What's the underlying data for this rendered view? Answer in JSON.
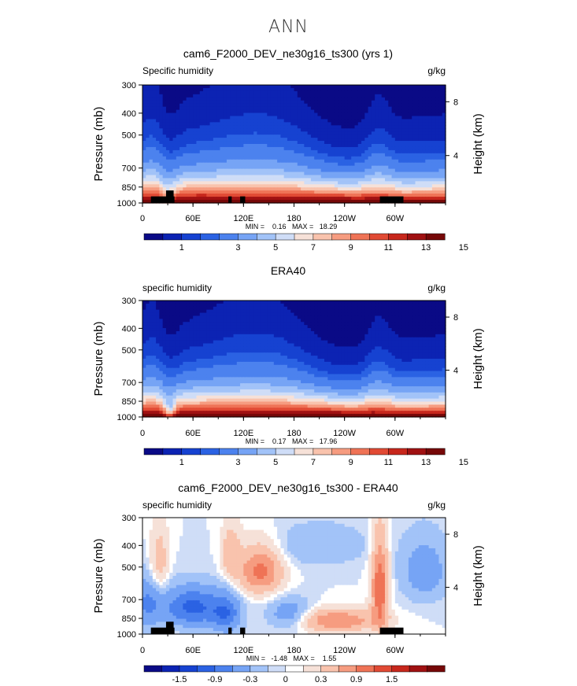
{
  "page": {
    "title": "ANN"
  },
  "colors": {
    "humidity_scale": [
      "#0a0a86",
      "#0c23b3",
      "#1642d1",
      "#2b62e3",
      "#4c82ee",
      "#76a4f5",
      "#a2c3f8",
      "#cfddf7",
      "#f6e1d8",
      "#f9c3ad",
      "#f69c80",
      "#ef7356",
      "#e14a34",
      "#c7271c",
      "#a01112",
      "#760808"
    ],
    "diff_scale": [
      "#0a0a86",
      "#0c23b3",
      "#1642d1",
      "#2b62e3",
      "#4c82ee",
      "#76a4f5",
      "#a2c3f8",
      "#cfddf7",
      "#ffffff",
      "#f6e1d8",
      "#f9c3ad",
      "#f69c80",
      "#ef7356",
      "#e14a34",
      "#c7271c",
      "#a01112",
      "#760808"
    ],
    "topography": "#000000"
  },
  "chart_data": [
    {
      "type": "heatmap",
      "title": "cam6_F2000_DEV_ne30g16_ts300 (yrs 1)",
      "left_label": "Specific humidity",
      "units": "g/kg",
      "ylabel": "Pressure (mb)",
      "ylabel_right": "Height (km)",
      "x_ticks": [
        "0",
        "60E",
        "120E",
        "180",
        "120W",
        "60W"
      ],
      "x_tick_values": [
        0,
        60,
        120,
        180,
        240,
        300
      ],
      "xlim": [
        0,
        360
      ],
      "y_ticks": [
        "300",
        "400",
        "500",
        "700",
        "850",
        "1000"
      ],
      "y_tick_values": [
        300,
        400,
        500,
        700,
        850,
        1000
      ],
      "ylim": [
        300,
        1000
      ],
      "y_scale": "log",
      "right_ticks": [
        "8",
        "4"
      ],
      "right_tick_values": [
        8,
        4
      ],
      "stats": "MIN =    0.16   MAX =   18.29",
      "colorbar_labels": [
        "1",
        "3",
        "5",
        "7",
        "9",
        "11",
        "13",
        "15"
      ],
      "colorbar_levels": [
        0.5,
        1,
        1.5,
        2,
        3,
        4,
        5,
        6,
        7,
        8,
        9,
        10,
        11,
        12,
        13,
        14,
        15,
        16
      ],
      "field": "humidity",
      "range": [
        0.16,
        18.29
      ],
      "topography": true
    },
    {
      "type": "heatmap",
      "title": "ERA40",
      "left_label": "specific humidity",
      "units": "g/kg",
      "ylabel": "Pressure (mb)",
      "ylabel_right": "Height (km)",
      "x_ticks": [
        "0",
        "60E",
        "120E",
        "180",
        "120W",
        "60W"
      ],
      "x_tick_values": [
        0,
        60,
        120,
        180,
        240,
        300
      ],
      "xlim": [
        0,
        360
      ],
      "y_ticks": [
        "300",
        "400",
        "500",
        "700",
        "850",
        "1000"
      ],
      "y_tick_values": [
        300,
        400,
        500,
        700,
        850,
        1000
      ],
      "ylim": [
        300,
        1000
      ],
      "y_scale": "log",
      "right_ticks": [
        "8",
        "4"
      ],
      "right_tick_values": [
        8,
        4
      ],
      "stats": "MIN =    0.17   MAX =   17.96",
      "colorbar_labels": [
        "1",
        "3",
        "5",
        "7",
        "9",
        "11",
        "13",
        "15"
      ],
      "colorbar_levels": [
        0.5,
        1,
        1.5,
        2,
        3,
        4,
        5,
        6,
        7,
        8,
        9,
        10,
        11,
        12,
        13,
        14,
        15,
        16
      ],
      "field": "humidity",
      "range": [
        0.17,
        17.96
      ],
      "topography": false
    },
    {
      "type": "heatmap",
      "title": "cam6_F2000_DEV_ne30g16_ts300 - ERA40",
      "left_label": "specific humidity",
      "units": "g/kg",
      "ylabel": "Pressure (mb)",
      "ylabel_right": "Height (km)",
      "x_ticks": [
        "0",
        "60E",
        "120E",
        "180",
        "120W",
        "60W"
      ],
      "x_tick_values": [
        0,
        60,
        120,
        180,
        240,
        300
      ],
      "xlim": [
        0,
        360
      ],
      "y_ticks": [
        "300",
        "400",
        "500",
        "700",
        "850",
        "1000"
      ],
      "y_tick_values": [
        300,
        400,
        500,
        700,
        850,
        1000
      ],
      "ylim": [
        300,
        1000
      ],
      "y_scale": "log",
      "right_ticks": [
        "8",
        "4"
      ],
      "right_tick_values": [
        8,
        4
      ],
      "stats": "MIN =   -1.48   MAX =    1.55",
      "colorbar_labels": [
        "-1.5",
        "-0.9",
        "-0.3",
        "0",
        "0.3",
        "0.9",
        "1.5"
      ],
      "colorbar_levels": [
        -1.8,
        -1.5,
        -1.2,
        -0.9,
        -0.6,
        -0.3,
        -0.1,
        0,
        0.1,
        0.3,
        0.6,
        0.9,
        1.2,
        1.5,
        1.8
      ],
      "field": "difference",
      "range": [
        -1.48,
        1.55
      ],
      "topography": true
    }
  ]
}
